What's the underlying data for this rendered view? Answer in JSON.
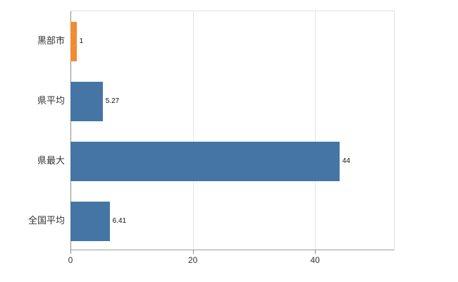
{
  "chart_data": {
    "type": "bar",
    "orientation": "horizontal",
    "title": "",
    "xlabel": "",
    "ylabel": "",
    "categories": [
      "黒部市",
      "県平均",
      "県最大",
      "全国平均"
    ],
    "values": [
      1,
      5.27,
      44,
      6.41
    ],
    "value_labels": [
      "1",
      "5.27",
      "44",
      "6.41"
    ],
    "bar_colors": [
      "#ef8c34",
      "#4575a5",
      "#4575a5",
      "#4575a5"
    ],
    "xlim": [
      0,
      53
    ],
    "x_ticks": [
      0,
      20,
      40
    ],
    "x_tick_labels": [
      "0",
      "20",
      "40"
    ],
    "grid": true,
    "legend": false
  },
  "colors": {
    "background": "#ffffff",
    "bar_blue": "#4575a5",
    "bar_orange": "#ef8c34",
    "gridline": "#e4e4e4",
    "axis": "#8a8a8a",
    "text": "#333333"
  }
}
